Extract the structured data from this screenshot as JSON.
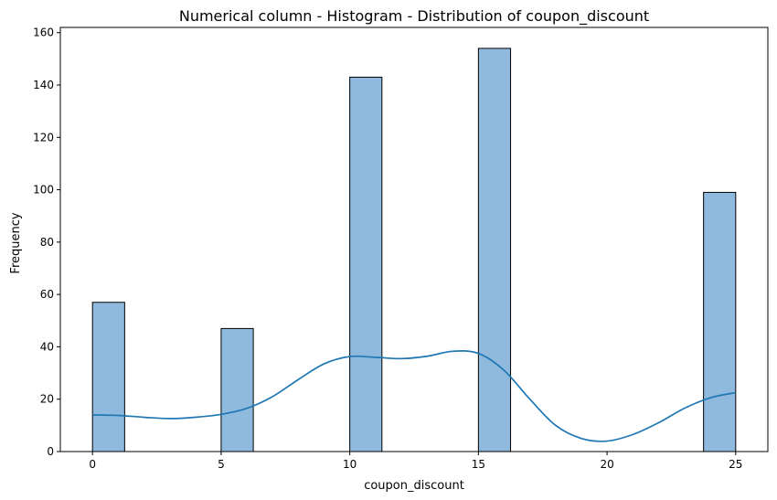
{
  "chart_data": {
    "type": "histogram",
    "title": "Numerical column - Histogram - Distribution of coupon_discount",
    "xlabel": "coupon_discount",
    "ylabel": "Frequency",
    "xlim": [
      -1.25,
      26.25
    ],
    "ylim": [
      0,
      162
    ],
    "xticks": [
      0,
      5,
      10,
      15,
      20,
      25
    ],
    "yticks": [
      0,
      20,
      40,
      60,
      80,
      100,
      120,
      140,
      160
    ],
    "grid": false,
    "bars": [
      {
        "x0": 0,
        "x1": 1.25,
        "value": 57
      },
      {
        "x0": 5,
        "x1": 6.25,
        "value": 47
      },
      {
        "x0": 10,
        "x1": 11.25,
        "value": 143
      },
      {
        "x0": 15,
        "x1": 16.25,
        "value": 154
      },
      {
        "x0": 23.75,
        "x1": 25,
        "value": 99
      }
    ],
    "kde": {
      "x": [
        0,
        1,
        2,
        3,
        4,
        5,
        6,
        7,
        8,
        9,
        10,
        11,
        12,
        13,
        14,
        15,
        16,
        17,
        18,
        19,
        20,
        21,
        22,
        23,
        24,
        25
      ],
      "y": [
        14,
        13.8,
        13.1,
        12.6,
        13.1,
        14.2,
        16.5,
        21,
        27.5,
        33.5,
        36.3,
        36,
        35.5,
        36.4,
        38.3,
        37.5,
        31,
        20,
        10,
        5,
        4,
        6.5,
        11,
        16.5,
        20.5,
        22.5
      ]
    },
    "colors": {
      "bar_fill": "#8fbadd",
      "bar_edge": "#000000",
      "kde_line": "#1f77b4"
    }
  }
}
